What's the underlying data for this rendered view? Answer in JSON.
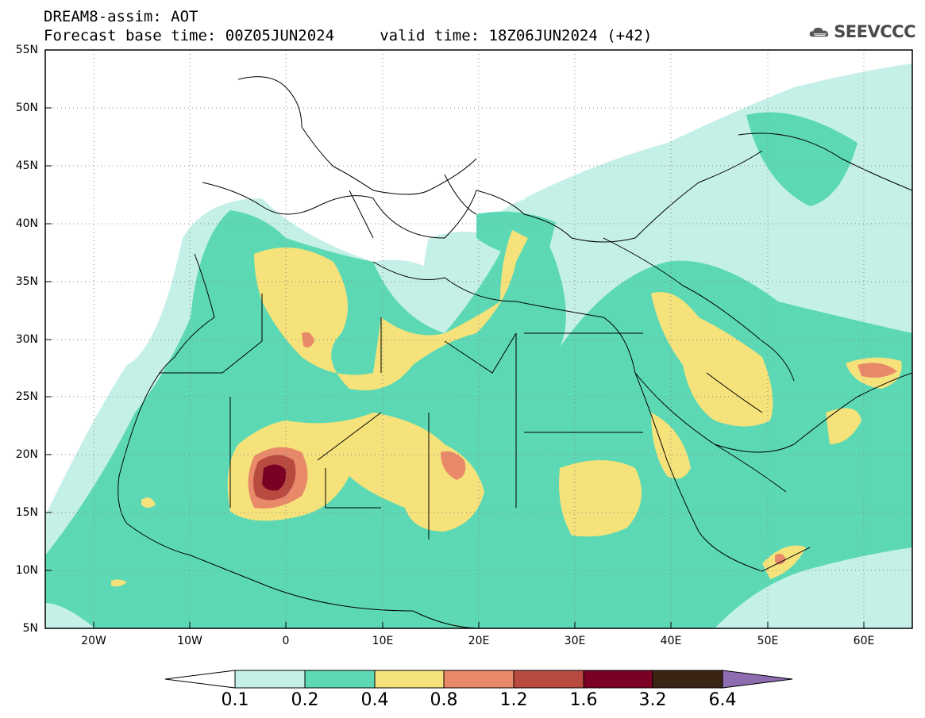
{
  "title": {
    "line1": "DREAM8-assim: AOT",
    "line2": "Forecast base time: 00Z05JUN2024     valid time: 18Z06JUN2024 (+42)"
  },
  "logo": {
    "text": "SEEVCCC",
    "icon": "cloud-icon"
  },
  "map": {
    "projection": "lat-lon",
    "lon_range": [
      -25,
      65
    ],
    "lat_range": [
      5,
      55
    ],
    "grid": "dotted",
    "lat_ticks": [
      "5N",
      "10N",
      "15N",
      "20N",
      "25N",
      "30N",
      "35N",
      "40N",
      "45N",
      "50N",
      "55N"
    ],
    "lon_ticks": [
      "20W",
      "10W",
      "0",
      "10E",
      "20E",
      "30E",
      "40E",
      "50E",
      "60E"
    ]
  },
  "colorbar": {
    "labels": [
      "0.1",
      "0.2",
      "0.4",
      "0.8",
      "1.2",
      "1.6",
      "3.2",
      "6.4"
    ],
    "colors": [
      "#c4f0e8",
      "#5cd9b4",
      "#f5e27a",
      "#e8896a",
      "#b84a40",
      "#7a0024",
      "#3a2414",
      "#8e6cb0"
    ]
  }
}
